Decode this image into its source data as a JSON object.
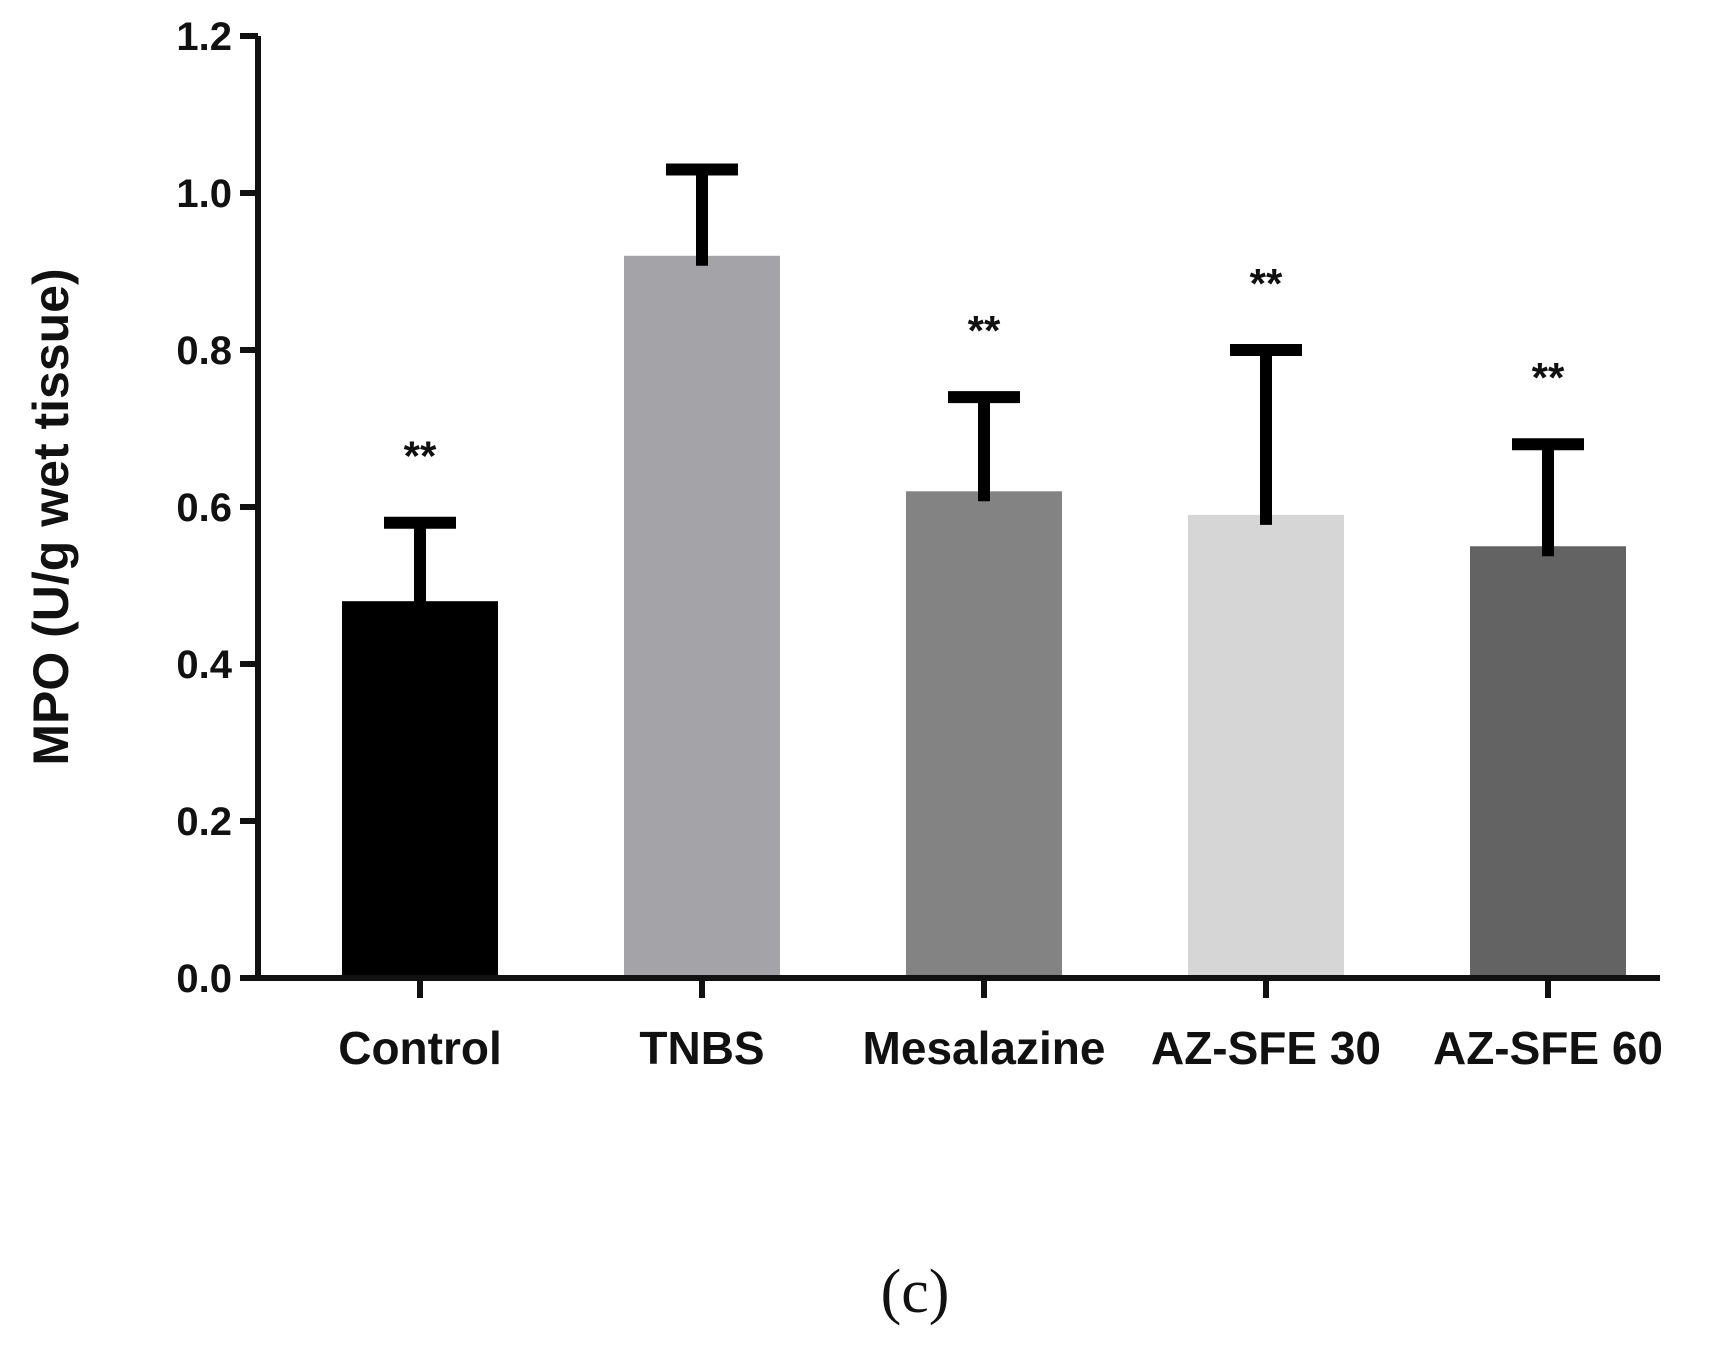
{
  "chart_data": {
    "type": "bar",
    "title": "",
    "xlabel": "",
    "ylabel": "MPO (U/g wet tissue)",
    "ylim": [
      0,
      1.2
    ],
    "yticks": [
      "0.0",
      "0.2",
      "0.4",
      "0.6",
      "0.8",
      "1.0",
      "1.2"
    ],
    "grid": false,
    "categories": [
      "Control",
      "TNBS",
      "Mesalazine",
      "AZ-SFE 30",
      "AZ-SFE 60"
    ],
    "values": [
      0.48,
      0.92,
      0.62,
      0.59,
      0.55
    ],
    "error_upper": [
      0.1,
      0.11,
      0.12,
      0.21,
      0.13
    ],
    "colors": [
      "#000000",
      "#a4a4a8",
      "#838383",
      "#d6d6d6",
      "#636363"
    ],
    "significance": [
      "**",
      "",
      "**",
      "**",
      "**"
    ],
    "panel_label": "(c)"
  }
}
